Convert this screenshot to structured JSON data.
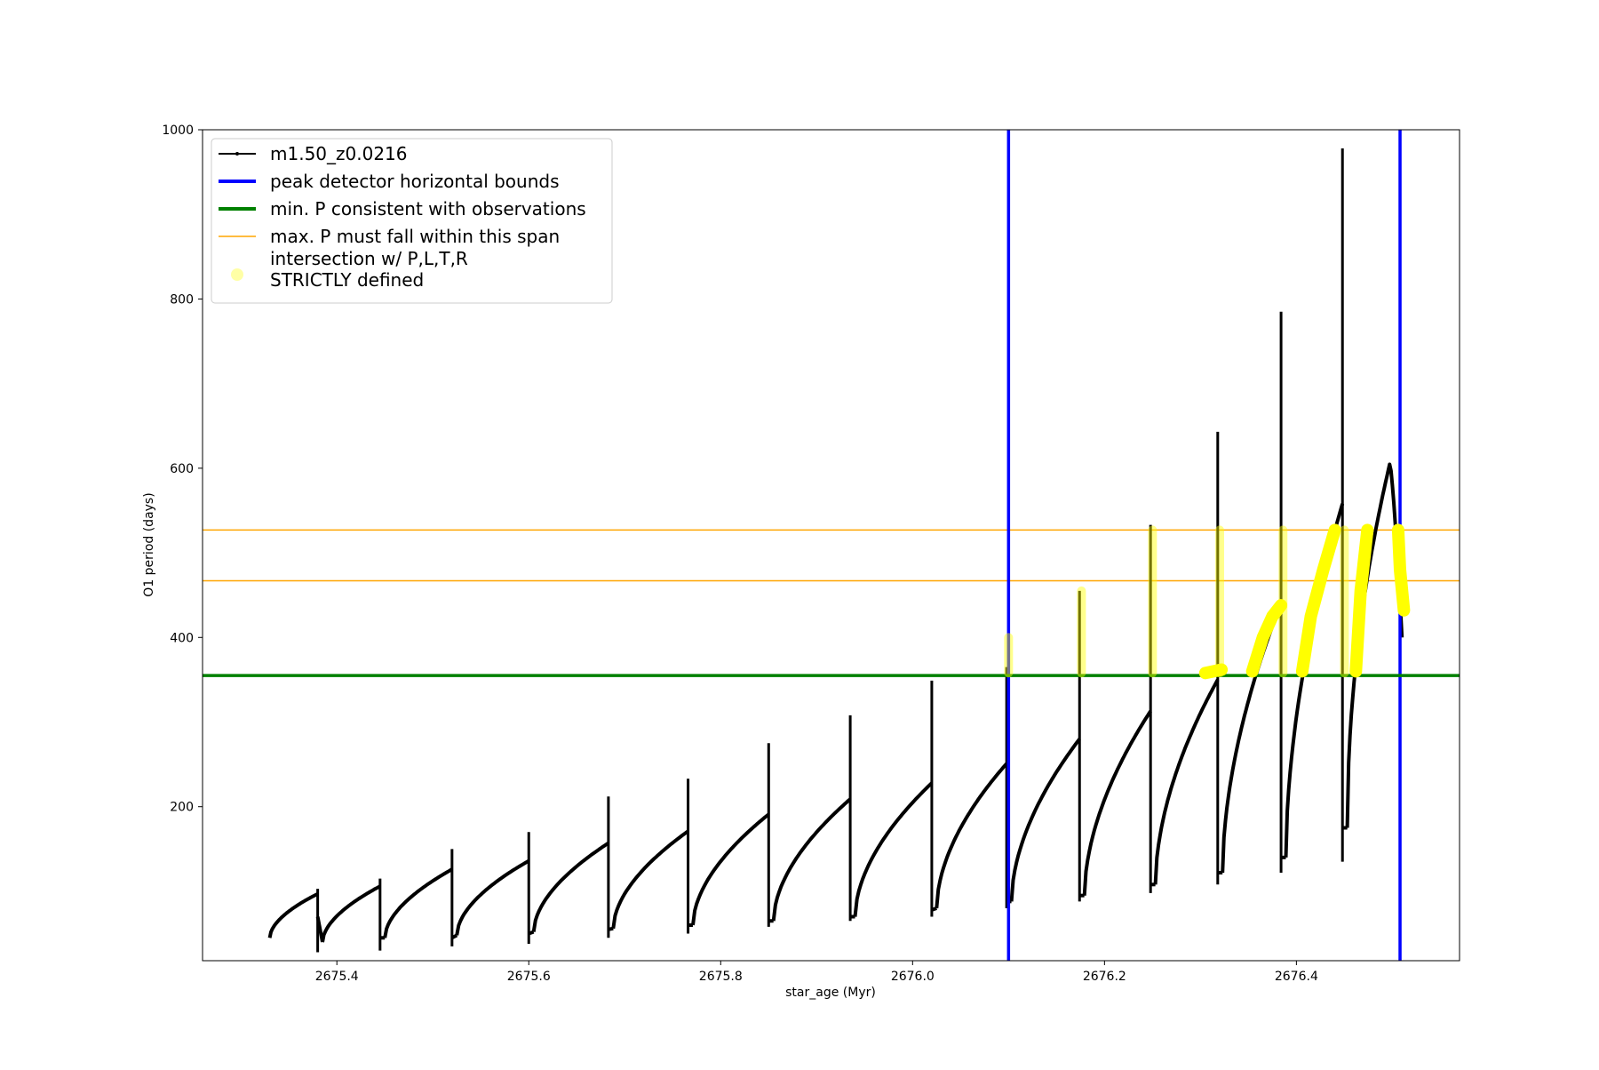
{
  "chart_data": {
    "type": "line",
    "title": "",
    "xlabel": "star_age (Myr)",
    "ylabel": "O1 period (days)",
    "xlim": [
      2675.26,
      2676.57
    ],
    "ylim": [
      18,
      1000
    ],
    "x_ticks": [
      2675.4,
      2675.6,
      2675.8,
      2676.0,
      2676.2,
      2676.4
    ],
    "x_tick_labels": [
      "2675.4",
      "2675.6",
      "2675.8",
      "2676.0",
      "2676.2",
      "2676.4"
    ],
    "y_ticks": [
      200,
      400,
      600,
      800,
      1000
    ],
    "y_tick_labels": [
      "200",
      "400",
      "600",
      "800",
      "1000"
    ],
    "grid": false,
    "legend_position": "upper-left",
    "legend": [
      {
        "label": "m1.50_z0.0216",
        "style": "line-marker",
        "color": "#000000"
      },
      {
        "label": "peak detector horizontal bounds",
        "style": "thick-line",
        "color": "#0000ff"
      },
      {
        "label": "min. P consistent with observations",
        "style": "thick-line",
        "color": "#008000"
      },
      {
        "label": "max. P must fall within this span",
        "style": "thin-line",
        "color": "#ffa500"
      },
      {
        "label": "intersection w/ P,L,T,R\nSTRICTLY defined",
        "style": "dot",
        "color": "#ffff00"
      }
    ],
    "series": [
      {
        "name": "m1.50_z0.0216",
        "color": "#000000",
        "pulses": [
          {
            "start": 2675.33,
            "end": 2675.38,
            "base": 45,
            "peak": 97,
            "spike_max": 103,
            "spike_min": 28,
            "spike_low": 70
          },
          {
            "start": 2675.385,
            "end": 2675.445,
            "base": 40,
            "peak": 106,
            "spike_max": 115,
            "spike_min": 30,
            "spike_low": 45
          },
          {
            "start": 2675.45,
            "end": 2675.52,
            "base": 45,
            "peak": 126,
            "spike_max": 150,
            "spike_min": 35,
            "spike_low": 45
          },
          {
            "start": 2675.525,
            "end": 2675.6,
            "base": 48,
            "peak": 136,
            "spike_max": 170,
            "spike_min": 38,
            "spike_low": 50
          },
          {
            "start": 2675.605,
            "end": 2675.683,
            "base": 52,
            "peak": 157,
            "spike_max": 212,
            "spike_min": 45,
            "spike_low": 55
          },
          {
            "start": 2675.688,
            "end": 2675.766,
            "base": 56,
            "peak": 171,
            "spike_max": 233,
            "spike_min": 50,
            "spike_low": 60
          },
          {
            "start": 2675.771,
            "end": 2675.85,
            "base": 60,
            "peak": 191,
            "spike_max": 275,
            "spike_min": 58,
            "spike_low": 65
          },
          {
            "start": 2675.855,
            "end": 2675.935,
            "base": 65,
            "peak": 209,
            "spike_max": 308,
            "spike_min": 65,
            "spike_low": 70
          },
          {
            "start": 2675.94,
            "end": 2676.02,
            "base": 70,
            "peak": 228,
            "spike_max": 349,
            "spike_min": 70,
            "spike_low": 78
          },
          {
            "start": 2676.025,
            "end": 2676.098,
            "base": 80,
            "peak": 251,
            "spike_max": 365,
            "spike_min": 80,
            "spike_low": 88
          },
          {
            "start": 2676.103,
            "end": 2676.174,
            "base": 88,
            "peak": 280,
            "spike_max": 455,
            "spike_min": 88,
            "spike_low": 95
          },
          {
            "start": 2676.179,
            "end": 2676.248,
            "base": 95,
            "peak": 313,
            "spike_max": 533,
            "spike_min": 98,
            "spike_low": 108
          },
          {
            "start": 2676.253,
            "end": 2676.318,
            "base": 108,
            "peak": 350,
            "spike_max": 643,
            "spike_min": 108,
            "spike_low": 122
          },
          {
            "start": 2676.323,
            "end": 2676.384,
            "base": 122,
            "peak": 440,
            "spike_max": 785,
            "spike_min": 122,
            "spike_low": 140
          },
          {
            "start": 2676.389,
            "end": 2676.448,
            "base": 140,
            "peak": 558,
            "spike_max": 978,
            "spike_min": 135,
            "spike_low": 175
          },
          {
            "start": 2676.453,
            "end": 2676.51,
            "base": 175,
            "peak": 606,
            "spike_max": 606,
            "spike_min": 400,
            "spike_low": 400
          }
        ]
      }
    ],
    "vertical_lines": [
      {
        "name": "peak detector horizontal bounds",
        "x": 2676.1,
        "color": "#0000ff"
      },
      {
        "name": "peak detector horizontal bounds",
        "x": 2676.508,
        "color": "#0000ff"
      }
    ],
    "horizontal_lines": [
      {
        "name": "min. P consistent with observations",
        "y": 355,
        "color": "#008000"
      },
      {
        "name": "max. P must fall within this span",
        "y": 467,
        "color": "#ffa500"
      },
      {
        "name": "max. P must fall within this span",
        "y": 527,
        "color": "#ffa500"
      }
    ],
    "intersections": {
      "name": "intersection w/ P,L,T,R STRICTLY defined",
      "color": "#ffff00",
      "vertical_strips": [
        {
          "x": 2676.1,
          "y": [
            358,
            400
          ]
        },
        {
          "x": 2676.176,
          "y": [
            358,
            455
          ]
        },
        {
          "x": 2676.25,
          "y": [
            358,
            527
          ]
        },
        {
          "x": 2676.32,
          "y": [
            358,
            527
          ]
        },
        {
          "x": 2676.386,
          "y": [
            358,
            527
          ]
        },
        {
          "x": 2676.45,
          "y": [
            358,
            527
          ]
        }
      ],
      "curves": [
        {
          "x": [
            2676.305,
            2676.322
          ],
          "y": [
            358,
            362
          ]
        },
        {
          "x": [
            2676.354,
            2676.365,
            2676.375,
            2676.384
          ],
          "y": [
            360,
            400,
            425,
            438
          ]
        },
        {
          "x": [
            2676.406,
            2676.415,
            2676.428,
            2676.44
          ],
          "y": [
            360,
            425,
            480,
            527
          ]
        },
        {
          "x": [
            2676.462,
            2676.467,
            2676.474
          ],
          "y": [
            360,
            455,
            527
          ]
        },
        {
          "x": [
            2676.506,
            2676.508,
            2676.512
          ],
          "y": [
            527,
            480,
            432
          ]
        }
      ]
    }
  }
}
